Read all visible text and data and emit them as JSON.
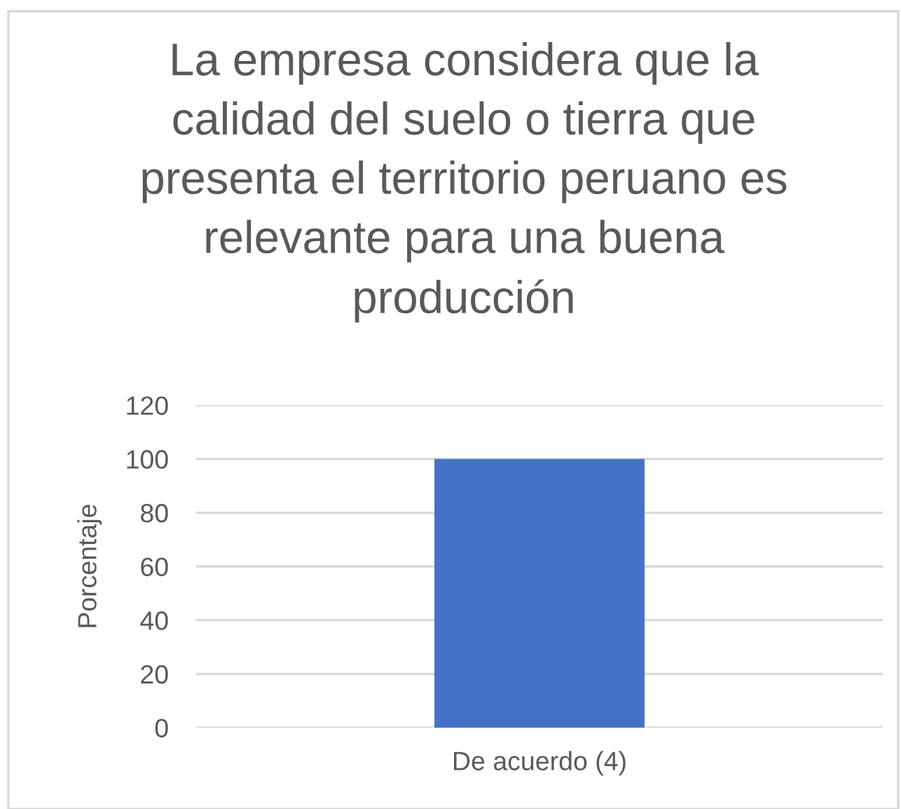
{
  "chart_data": {
    "type": "bar",
    "title": "La empresa considera que la calidad del suelo o tierra que presenta el territorio peruano es relevante para una buena producción",
    "ylabel": "Porcentaje",
    "categories": [
      "De acuerdo (4)"
    ],
    "values": [
      100
    ],
    "color": "#4472c4",
    "ylim": [
      0,
      120
    ],
    "yticks": [
      0,
      20,
      40,
      60,
      80,
      100,
      120
    ],
    "grid": "y"
  }
}
